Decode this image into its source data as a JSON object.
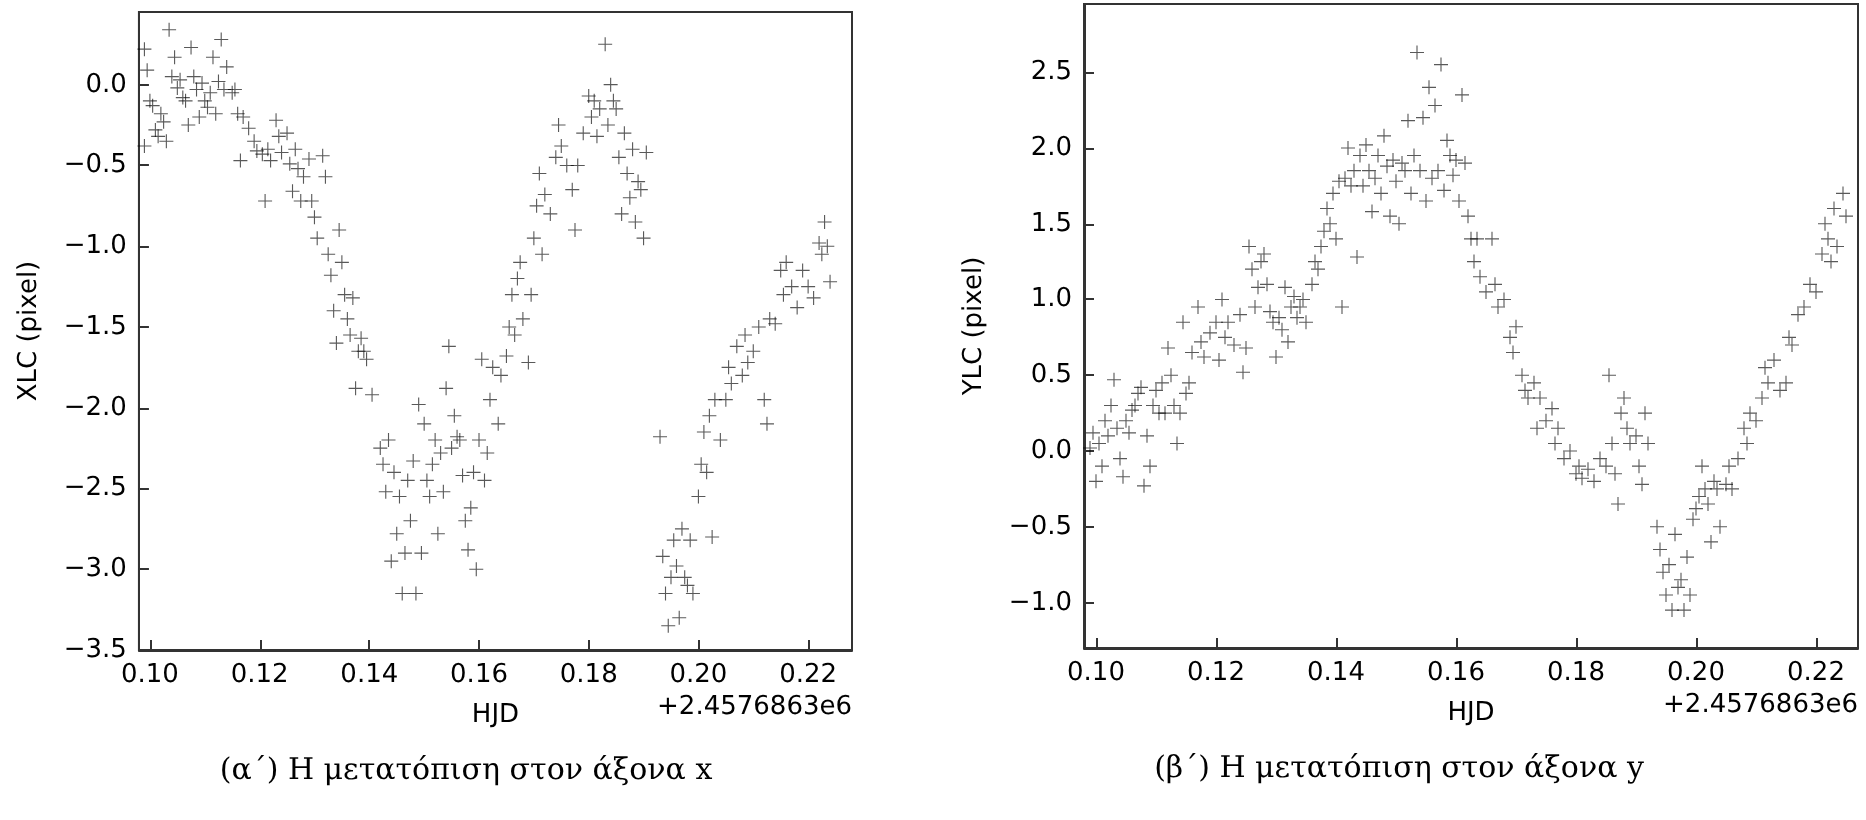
{
  "chart_data": [
    {
      "type": "scatter",
      "xlabel": "HJD",
      "ylabel": "XLC (pixel)",
      "marker": "cross",
      "color": "#000000",
      "annotations": [
        "+2.4576863e6",
        "(α΄) Η μετατόπιση στον άξονα x"
      ],
      "xlim": [
        0.098,
        0.228
      ],
      "ylim": [
        -3.5,
        0.45
      ],
      "xticks": [
        {
          "value": 0.1,
          "label": "0.10"
        },
        {
          "value": 0.12,
          "label": "0.12"
        },
        {
          "value": 0.14,
          "label": "0.14"
        },
        {
          "value": 0.16,
          "label": "0.16"
        },
        {
          "value": 0.18,
          "label": "0.18"
        },
        {
          "value": 0.2,
          "label": "0.20"
        },
        {
          "value": 0.22,
          "label": "0.22"
        }
      ],
      "yticks": [
        {
          "value": -3.5,
          "label": "−3.5"
        },
        {
          "value": -3,
          "label": "−3.0"
        },
        {
          "value": -2.5,
          "label": "−2.5"
        },
        {
          "value": -2,
          "label": "−2.0"
        },
        {
          "value": -1.5,
          "label": "−1.5"
        },
        {
          "value": -1,
          "label": "−1.0"
        },
        {
          "value": -0.5,
          "label": "−0.5"
        },
        {
          "value": 0,
          "label": "0.0"
        }
      ],
      "x": [
        0.099,
        0.099,
        0.0995,
        0.1,
        0.1005,
        0.101,
        0.1015,
        0.102,
        0.1025,
        0.103,
        0.1035,
        0.104,
        0.1045,
        0.105,
        0.1055,
        0.106,
        0.1065,
        0.107,
        0.1075,
        0.108,
        0.1085,
        0.109,
        0.1095,
        0.11,
        0.1105,
        0.111,
        0.1115,
        0.112,
        0.1125,
        0.113,
        0.1135,
        0.114,
        0.115,
        0.1155,
        0.116,
        0.1165,
        0.117,
        0.118,
        0.119,
        0.1195,
        0.1205,
        0.121,
        0.1215,
        0.122,
        0.123,
        0.1235,
        0.124,
        0.125,
        0.1255,
        0.126,
        0.1265,
        0.127,
        0.1275,
        0.128,
        0.129,
        0.1295,
        0.13,
        0.1305,
        0.1315,
        0.132,
        0.1325,
        0.133,
        0.1335,
        0.134,
        0.1345,
        0.135,
        0.1355,
        0.136,
        0.1365,
        0.137,
        0.1375,
        0.138,
        0.1385,
        0.139,
        0.1395,
        0.1405,
        0.142,
        0.1425,
        0.143,
        0.1435,
        0.144,
        0.1445,
        0.145,
        0.1455,
        0.146,
        0.1465,
        0.147,
        0.1475,
        0.148,
        0.1485,
        0.149,
        0.1495,
        0.15,
        0.1505,
        0.151,
        0.1515,
        0.152,
        0.1525,
        0.153,
        0.1535,
        0.154,
        0.1545,
        0.155,
        0.1555,
        0.156,
        0.1565,
        0.157,
        0.1575,
        0.158,
        0.1585,
        0.159,
        0.1595,
        0.16,
        0.1605,
        0.161,
        0.1615,
        0.162,
        0.1625,
        0.1635,
        0.164,
        0.165,
        0.1655,
        0.166,
        0.1665,
        0.167,
        0.1675,
        0.168,
        0.169,
        0.1695,
        0.17,
        0.1705,
        0.171,
        0.1715,
        0.172,
        0.173,
        0.174,
        0.1745,
        0.175,
        0.176,
        0.177,
        0.1775,
        0.178,
        0.179,
        0.18,
        0.1805,
        0.181,
        0.1815,
        0.182,
        0.183,
        0.1835,
        0.184,
        0.1845,
        0.185,
        0.1855,
        0.186,
        0.1865,
        0.187,
        0.1875,
        0.188,
        0.1885,
        0.189,
        0.1895,
        0.19,
        0.1905,
        0.193,
        0.1935,
        0.194,
        0.1945,
        0.195,
        0.1955,
        0.196,
        0.1965,
        0.197,
        0.1975,
        0.198,
        0.1985,
        0.199,
        0.2,
        0.2005,
        0.201,
        0.2015,
        0.202,
        0.2025,
        0.203,
        0.204,
        0.205,
        0.2055,
        0.206,
        0.207,
        0.208,
        0.2085,
        0.209,
        0.21,
        0.211,
        0.212,
        0.2125,
        0.213,
        0.214,
        0.215,
        0.2155,
        0.216,
        0.217,
        0.218,
        0.219,
        0.22,
        0.221,
        0.222,
        0.2225,
        0.223,
        0.2235,
        0.224
      ],
      "values": [
        0.22,
        -0.38,
        0.09,
        -0.1,
        -0.13,
        -0.28,
        -0.32,
        -0.18,
        -0.23,
        -0.35,
        0.34,
        0.05,
        0.17,
        -0.02,
        0.03,
        -0.08,
        -0.1,
        -0.25,
        0.23,
        0.05,
        -0.03,
        -0.2,
        0.01,
        -0.1,
        -0.14,
        -0.05,
        0.17,
        -0.18,
        0.02,
        0.28,
        -0.03,
        0.11,
        -0.05,
        -0.03,
        -0.18,
        -0.47,
        -0.2,
        -0.27,
        -0.35,
        -0.41,
        -0.43,
        -0.72,
        -0.4,
        -0.47,
        -0.22,
        -0.32,
        -0.42,
        -0.3,
        -0.49,
        -0.66,
        -0.4,
        -0.52,
        -0.72,
        -0.57,
        -0.46,
        -0.72,
        -0.82,
        -0.95,
        -0.44,
        -0.57,
        -1.05,
        -1.18,
        -1.4,
        -1.6,
        -0.9,
        -1.1,
        -1.3,
        -1.45,
        -1.55,
        -1.32,
        -1.88,
        -1.65,
        -1.57,
        -1.65,
        -1.7,
        -1.92,
        -2.25,
        -2.35,
        -2.52,
        -2.2,
        -2.95,
        -2.4,
        -2.78,
        -2.55,
        -3.15,
        -2.9,
        -2.45,
        -2.7,
        -2.33,
        -3.15,
        -1.98,
        -2.9,
        -2.1,
        -2.45,
        -2.55,
        -2.35,
        -2.2,
        -2.78,
        -2.28,
        -2.52,
        -1.88,
        -1.62,
        -2.25,
        -2.05,
        -2.18,
        -2.2,
        -2.42,
        -2.7,
        -2.88,
        -2.62,
        -2.4,
        -3.0,
        -2.2,
        -1.7,
        -2.45,
        -2.28,
        -1.95,
        -1.75,
        -2.1,
        -1.8,
        -1.68,
        -1.5,
        -1.3,
        -1.55,
        -1.2,
        -1.1,
        -1.45,
        -1.72,
        -1.3,
        -0.95,
        -0.75,
        -0.55,
        -1.05,
        -0.68,
        -0.8,
        -0.45,
        -0.25,
        -0.38,
        -0.5,
        -0.65,
        -0.9,
        -0.5,
        -0.3,
        -0.07,
        -0.2,
        -0.1,
        -0.32,
        -0.15,
        0.25,
        -0.25,
        0.0,
        -0.1,
        -0.15,
        -0.45,
        -0.8,
        -0.3,
        -0.55,
        -0.7,
        -0.4,
        -0.85,
        -0.6,
        -0.65,
        -0.95,
        -0.42,
        -2.18,
        -2.92,
        -3.15,
        -3.35,
        -3.05,
        -2.82,
        -2.98,
        -3.3,
        -2.75,
        -3.05,
        -3.1,
        -2.82,
        -3.15,
        -2.55,
        -2.35,
        -2.15,
        -2.4,
        -2.05,
        -2.8,
        -1.95,
        -2.2,
        -1.95,
        -1.75,
        -1.85,
        -1.62,
        -1.8,
        -1.55,
        -1.72,
        -1.65,
        -1.5,
        -1.95,
        -2.1,
        -1.45,
        -1.48,
        -1.15,
        -1.3,
        -1.1,
        -1.25,
        -1.38,
        -1.15,
        -1.25,
        -1.32,
        -0.98,
        -1.05,
        -0.85,
        -1.0,
        -1.22
      ]
    },
    {
      "type": "scatter",
      "xlabel": "HJD",
      "ylabel": "YLC (pixel)",
      "marker": "cross",
      "color": "#000000",
      "annotations": [
        "+2.4576863e6",
        "(β΄) Η μετατόπιση στον άξονα y"
      ],
      "xlim": [
        0.098,
        0.227
      ],
      "ylim": [
        -1.3,
        2.95
      ],
      "xticks": [
        {
          "value": 0.1,
          "label": "0.10"
        },
        {
          "value": 0.12,
          "label": "0.12"
        },
        {
          "value": 0.14,
          "label": "0.14"
        },
        {
          "value": 0.16,
          "label": "0.16"
        },
        {
          "value": 0.18,
          "label": "0.18"
        },
        {
          "value": 0.2,
          "label": "0.20"
        },
        {
          "value": 0.22,
          "label": "0.22"
        }
      ],
      "yticks": [
        {
          "value": -1,
          "label": "−1.0"
        },
        {
          "value": -0.5,
          "label": "−0.5"
        },
        {
          "value": 0,
          "label": "0.0"
        },
        {
          "value": 0.5,
          "label": "0.5"
        },
        {
          "value": 1,
          "label": "1.0"
        },
        {
          "value": 1.5,
          "label": "1.5"
        },
        {
          "value": 2,
          "label": "2.0"
        },
        {
          "value": 2.5,
          "label": "2.5"
        }
      ],
      "x": [
        0.099,
        0.0995,
        0.1,
        0.1005,
        0.101,
        0.1015,
        0.102,
        0.1025,
        0.103,
        0.1035,
        0.104,
        0.1045,
        0.105,
        0.1055,
        0.106,
        0.1065,
        0.107,
        0.1075,
        0.108,
        0.1085,
        0.109,
        0.1095,
        0.11,
        0.1105,
        0.111,
        0.1115,
        0.112,
        0.1125,
        0.113,
        0.1135,
        0.114,
        0.1145,
        0.115,
        0.1155,
        0.116,
        0.117,
        0.1175,
        0.118,
        0.119,
        0.12,
        0.1205,
        0.121,
        0.1215,
        0.122,
        0.123,
        0.124,
        0.1245,
        0.125,
        0.1255,
        0.126,
        0.1265,
        0.127,
        0.1275,
        0.128,
        0.1285,
        0.129,
        0.1295,
        0.13,
        0.1305,
        0.131,
        0.1315,
        0.132,
        0.1325,
        0.133,
        0.1335,
        0.134,
        0.1345,
        0.135,
        0.136,
        0.1365,
        0.137,
        0.1375,
        0.138,
        0.1385,
        0.139,
        0.1395,
        0.14,
        0.1405,
        0.141,
        0.1415,
        0.142,
        0.1425,
        0.143,
        0.1435,
        0.144,
        0.1445,
        0.145,
        0.1455,
        0.146,
        0.1465,
        0.147,
        0.1475,
        0.148,
        0.1485,
        0.149,
        0.1495,
        0.15,
        0.1505,
        0.151,
        0.1515,
        0.152,
        0.1525,
        0.153,
        0.1535,
        0.154,
        0.1545,
        0.155,
        0.1555,
        0.156,
        0.1565,
        0.157,
        0.1575,
        0.158,
        0.1585,
        0.159,
        0.1595,
        0.16,
        0.1605,
        0.161,
        0.1615,
        0.162,
        0.1625,
        0.163,
        0.1635,
        0.164,
        0.165,
        0.166,
        0.1665,
        0.167,
        0.168,
        0.169,
        0.1695,
        0.17,
        0.171,
        0.1715,
        0.172,
        0.173,
        0.1735,
        0.174,
        0.175,
        0.176,
        0.1765,
        0.177,
        0.178,
        0.179,
        0.18,
        0.1805,
        0.181,
        0.182,
        0.183,
        0.184,
        0.185,
        0.1855,
        0.186,
        0.1865,
        0.187,
        0.1875,
        0.188,
        0.1885,
        0.189,
        0.19,
        0.1905,
        0.191,
        0.1915,
        0.192,
        0.1935,
        0.194,
        0.1945,
        0.195,
        0.1955,
        0.196,
        0.1965,
        0.197,
        0.1975,
        0.198,
        0.1985,
        0.199,
        0.1995,
        0.2,
        0.2005,
        0.201,
        0.2015,
        0.202,
        0.2025,
        0.203,
        0.2035,
        0.204,
        0.205,
        0.2055,
        0.206,
        0.207,
        0.208,
        0.2085,
        0.209,
        0.21,
        0.211,
        0.2115,
        0.212,
        0.213,
        0.214,
        0.215,
        0.2155,
        0.216,
        0.217,
        0.218,
        0.219,
        0.22,
        0.221,
        0.2215,
        0.222,
        0.2225,
        0.223,
        0.2235,
        0.2245,
        0.225
      ],
      "values": [
        0.02,
        0.12,
        -0.2,
        0.05,
        -0.1,
        0.2,
        0.1,
        0.3,
        0.47,
        0.15,
        -0.05,
        -0.17,
        0.2,
        0.12,
        0.27,
        0.3,
        0.38,
        0.42,
        -0.23,
        0.1,
        -0.1,
        0.3,
        0.4,
        0.25,
        0.45,
        0.25,
        0.68,
        0.5,
        0.3,
        0.05,
        0.25,
        0.85,
        0.38,
        0.45,
        0.65,
        0.95,
        0.72,
        0.62,
        0.78,
        0.85,
        0.6,
        1.0,
        0.75,
        0.85,
        0.7,
        0.9,
        0.52,
        0.68,
        1.35,
        1.2,
        0.95,
        1.08,
        1.25,
        1.3,
        1.1,
        0.92,
        0.85,
        0.62,
        0.88,
        0.8,
        1.08,
        0.72,
        0.95,
        1.02,
        0.88,
        0.95,
        1.0,
        0.85,
        1.1,
        1.25,
        1.2,
        1.35,
        1.45,
        1.6,
        1.5,
        1.7,
        1.4,
        1.78,
        0.95,
        1.8,
        2.0,
        1.75,
        1.85,
        1.28,
        1.95,
        1.75,
        2.02,
        1.85,
        1.58,
        1.8,
        1.95,
        1.7,
        2.08,
        1.88,
        1.55,
        1.92,
        1.78,
        1.5,
        1.9,
        1.85,
        2.18,
        1.7,
        1.95,
        2.63,
        1.85,
        2.2,
        1.65,
        2.4,
        1.8,
        2.28,
        1.85,
        2.55,
        1.72,
        2.05,
        1.95,
        1.82,
        1.92,
        1.65,
        2.35,
        1.9,
        1.55,
        1.4,
        1.25,
        1.4,
        1.15,
        1.05,
        1.4,
        1.1,
        0.95,
        1.0,
        0.75,
        0.65,
        0.82,
        0.5,
        0.4,
        0.35,
        0.45,
        0.15,
        0.35,
        0.2,
        0.28,
        0.05,
        0.15,
        -0.05,
        0.0,
        -0.15,
        -0.1,
        -0.18,
        -0.12,
        -0.2,
        -0.05,
        -0.1,
        0.5,
        0.05,
        -0.15,
        -0.35,
        0.25,
        0.35,
        0.15,
        0.05,
        0.1,
        -0.1,
        -0.22,
        0.25,
        0.05,
        -0.5,
        -0.65,
        -0.8,
        -0.95,
        -0.75,
        -1.05,
        -0.55,
        -0.9,
        -0.85,
        -1.05,
        -0.7,
        -0.95,
        -0.45,
        -0.38,
        -0.3,
        -0.1,
        -0.25,
        -0.35,
        -0.6,
        -0.2,
        -0.25,
        -0.5,
        -0.22,
        -0.1,
        -0.25,
        -0.05,
        0.15,
        0.05,
        0.25,
        0.2,
        0.35,
        0.55,
        0.45,
        0.6,
        0.4,
        0.45,
        0.75,
        0.7,
        0.9,
        0.95,
        1.1,
        1.05,
        1.3,
        1.5,
        1.4,
        1.25,
        1.6,
        1.35,
        1.7,
        1.55
      ]
    }
  ]
}
